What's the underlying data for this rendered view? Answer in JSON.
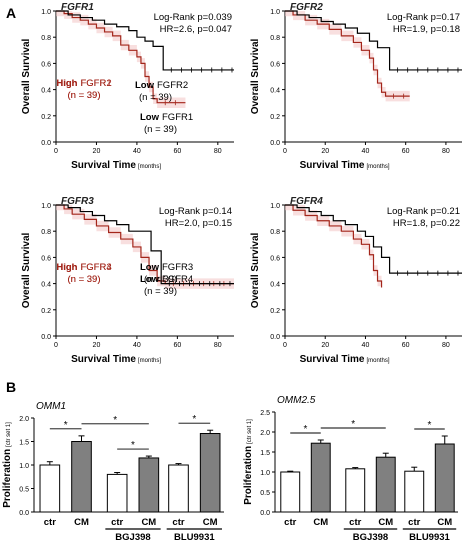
{
  "panels": {
    "a": {
      "label": "A"
    },
    "b": {
      "label": "B"
    }
  },
  "colors": {
    "high": "#a3261b",
    "low": "#000000",
    "ci": "#f2c4c4",
    "bar_ctr": "#ffffff",
    "bar_cm": "#808080"
  },
  "chart_data": [
    {
      "type": "line",
      "subtype": "kaplan-meier",
      "title": "FGFR1",
      "xlabel": "Survival Time",
      "xlabel_unit": "[months]",
      "ylabel": "Overall Survival",
      "xlim": [
        0,
        88
      ],
      "ylim": [
        0,
        1.0
      ],
      "xticks": [
        0,
        20,
        40,
        60,
        80
      ],
      "yticks": [
        "0.0",
        "0.2",
        "0.4",
        "0.6",
        "0.8",
        "1.0"
      ],
      "stats": [
        "Log-Rank p=0.039",
        "HR=2.6, p=0.047"
      ],
      "high_label": {
        "bold": "High",
        "name": "FGFR1",
        "n": "(n = 39)"
      },
      "low_label": {
        "bold": "Low",
        "name": "FGFR1",
        "n": "(n = 39)"
      },
      "series": [
        {
          "name": "High",
          "points": [
            [
              0,
              1.0
            ],
            [
              4,
              0.98
            ],
            [
              8,
              0.95
            ],
            [
              12,
              0.93
            ],
            [
              16,
              0.9
            ],
            [
              20,
              0.87
            ],
            [
              24,
              0.84
            ],
            [
              28,
              0.81
            ],
            [
              32,
              0.74
            ],
            [
              36,
              0.7
            ],
            [
              40,
              0.65
            ],
            [
              42,
              0.6
            ],
            [
              44,
              0.5
            ],
            [
              46,
              0.42
            ],
            [
              48,
              0.33
            ],
            [
              50,
              0.3
            ],
            [
              64,
              0.3
            ]
          ]
        },
        {
          "name": "Low",
          "points": [
            [
              0,
              1.0
            ],
            [
              6,
              0.97
            ],
            [
              12,
              0.95
            ],
            [
              18,
              0.93
            ],
            [
              24,
              0.9
            ],
            [
              30,
              0.88
            ],
            [
              36,
              0.85
            ],
            [
              40,
              0.8
            ],
            [
              44,
              0.77
            ],
            [
              48,
              0.73
            ],
            [
              53,
              0.55
            ],
            [
              88,
              0.55
            ]
          ]
        }
      ]
    },
    {
      "type": "line",
      "subtype": "kaplan-meier",
      "title": "FGFR2",
      "xlabel": "Survival Time",
      "xlabel_unit": "[months]",
      "ylabel": "Overall Survival",
      "xlim": [
        0,
        88
      ],
      "ylim": [
        0,
        1.0
      ],
      "xticks": [
        0,
        20,
        40,
        60,
        80
      ],
      "yticks": [
        "0.0",
        "0.2",
        "0.4",
        "0.6",
        "0.8",
        "1.0"
      ],
      "stats": [
        "Log-Rank p=0.17",
        "HR=1.9, p=0.18"
      ],
      "high_label": {
        "bold": "High",
        "name": "FGFR2",
        "n": "(n = 39)"
      },
      "low_label": {
        "bold": "Low",
        "name": "FGFR2",
        "n": "(n = 39)"
      },
      "series": [
        {
          "name": "High",
          "points": [
            [
              0,
              1.0
            ],
            [
              4,
              0.97
            ],
            [
              10,
              0.93
            ],
            [
              16,
              0.9
            ],
            [
              22,
              0.86
            ],
            [
              28,
              0.81
            ],
            [
              34,
              0.76
            ],
            [
              38,
              0.7
            ],
            [
              42,
              0.64
            ],
            [
              44,
              0.55
            ],
            [
              46,
              0.45
            ],
            [
              48,
              0.38
            ],
            [
              50,
              0.35
            ],
            [
              62,
              0.35
            ]
          ]
        },
        {
          "name": "Low",
          "points": [
            [
              0,
              1.0
            ],
            [
              6,
              0.97
            ],
            [
              12,
              0.95
            ],
            [
              18,
              0.92
            ],
            [
              24,
              0.9
            ],
            [
              30,
              0.87
            ],
            [
              36,
              0.83
            ],
            [
              42,
              0.77
            ],
            [
              46,
              0.72
            ],
            [
              52,
              0.55
            ],
            [
              88,
              0.55
            ]
          ]
        }
      ]
    },
    {
      "type": "line",
      "subtype": "kaplan-meier",
      "title": "FGFR3",
      "xlabel": "Survival Time",
      "xlabel_unit": "[months]",
      "ylabel": "Overall Survival",
      "xlim": [
        0,
        88
      ],
      "ylim": [
        0,
        1.0
      ],
      "xticks": [
        0,
        20,
        40,
        60,
        80
      ],
      "yticks": [
        "0.0",
        "0.2",
        "0.4",
        "0.6",
        "0.8",
        "1.0"
      ],
      "stats": [
        "Log-Rank p=0.14",
        "HR=2.0, p=0.15"
      ],
      "high_label": {
        "bold": "High",
        "name": "FGFR3",
        "n": "(n = 39)"
      },
      "low_label": {
        "bold": "Low",
        "name": "FGFR3",
        "n": "(n = 39)"
      },
      "series": [
        {
          "name": "High",
          "points": [
            [
              0,
              1.0
            ],
            [
              4,
              0.97
            ],
            [
              8,
              0.93
            ],
            [
              14,
              0.89
            ],
            [
              20,
              0.84
            ],
            [
              26,
              0.79
            ],
            [
              32,
              0.74
            ],
            [
              38,
              0.68
            ],
            [
              42,
              0.6
            ],
            [
              46,
              0.5
            ],
            [
              50,
              0.42
            ],
            [
              54,
              0.4
            ],
            [
              88,
              0.4
            ]
          ]
        },
        {
          "name": "Low",
          "points": [
            [
              0,
              1.0
            ],
            [
              6,
              0.98
            ],
            [
              12,
              0.95
            ],
            [
              18,
              0.92
            ],
            [
              24,
              0.88
            ],
            [
              30,
              0.85
            ],
            [
              36,
              0.8
            ],
            [
              42,
              0.8
            ],
            [
              47,
              0.65
            ],
            [
              52,
              0.4
            ],
            [
              88,
              0.4
            ]
          ]
        }
      ]
    },
    {
      "type": "line",
      "subtype": "kaplan-meier",
      "title": "FGFR4",
      "xlabel": "Survival Time",
      "xlabel_unit": "[months]",
      "ylabel": "Overall Survival",
      "xlim": [
        0,
        88
      ],
      "ylim": [
        0,
        1.0
      ],
      "xticks": [
        0,
        20,
        40,
        60,
        80
      ],
      "yticks": [
        "0.0",
        "0.2",
        "0.4",
        "0.6",
        "0.8",
        "1.0"
      ],
      "stats": [
        "Log-Rank p=0.21",
        "HR=1.8, p=0.22"
      ],
      "high_label": {
        "bold": "High",
        "name": "FGFR4",
        "n": "(n = 39)"
      },
      "low_label": {
        "bold": "Low",
        "name": "FGFR4",
        "n": "(n = 39)"
      },
      "series": [
        {
          "name": "High",
          "points": [
            [
              0,
              1.0
            ],
            [
              4,
              0.96
            ],
            [
              10,
              0.92
            ],
            [
              16,
              0.88
            ],
            [
              22,
              0.84
            ],
            [
              28,
              0.8
            ],
            [
              34,
              0.74
            ],
            [
              38,
              0.7
            ],
            [
              42,
              0.62
            ],
            [
              44,
              0.5
            ],
            [
              46,
              0.42
            ],
            [
              48,
              0.37
            ]
          ]
        },
        {
          "name": "Low",
          "points": [
            [
              0,
              1.0
            ],
            [
              6,
              0.98
            ],
            [
              12,
              0.95
            ],
            [
              18,
              0.92
            ],
            [
              24,
              0.88
            ],
            [
              30,
              0.85
            ],
            [
              36,
              0.8
            ],
            [
              40,
              0.76
            ],
            [
              44,
              0.68
            ],
            [
              48,
              0.6
            ],
            [
              52,
              0.48
            ],
            [
              88,
              0.48
            ]
          ]
        }
      ]
    },
    {
      "type": "bar",
      "title": "OMM1",
      "ylabel": "Proliferation",
      "ylabel_unit": "[ctr set 1]",
      "ylim": [
        0,
        2.0
      ],
      "yticks": [
        "0.0",
        "0.5",
        "1.0",
        "1.5",
        "2.0"
      ],
      "categories": [
        "ctr",
        "CM",
        "ctr",
        "CM",
        "ctr",
        "CM"
      ],
      "groups": [
        "",
        "BGJ398",
        "BLU9931"
      ],
      "values": [
        1.0,
        1.5,
        0.8,
        1.15,
        1.0,
        1.67
      ],
      "errors": [
        0.07,
        0.12,
        0.04,
        0.04,
        0.03,
        0.07
      ],
      "fill": [
        "ctr",
        "cm",
        "ctr",
        "cm",
        "ctr",
        "cm"
      ],
      "significance": [
        {
          "from": 0,
          "to": 1,
          "label": "*"
        },
        {
          "from": 1,
          "to": 3,
          "label": "*"
        },
        {
          "from": 2,
          "to": 3,
          "label": "*"
        },
        {
          "from": 4,
          "to": 5,
          "label": "*"
        }
      ]
    },
    {
      "type": "bar",
      "title": "OMM2.5",
      "ylabel": "Proliferation",
      "ylabel_unit": "[ctr set 1]",
      "ylim": [
        0,
        2.5
      ],
      "yticks": [
        "0.0",
        "0.5",
        "1.0",
        "1.5",
        "2.0",
        "2.5"
      ],
      "categories": [
        "ctr",
        "CM",
        "ctr",
        "CM",
        "ctr",
        "CM"
      ],
      "groups": [
        "",
        "BGJ398",
        "BLU9931"
      ],
      "values": [
        1.0,
        1.72,
        1.08,
        1.37,
        1.02,
        1.7
      ],
      "errors": [
        0.02,
        0.08,
        0.03,
        0.1,
        0.1,
        0.2
      ],
      "fill": [
        "ctr",
        "cm",
        "ctr",
        "cm",
        "ctr",
        "cm"
      ],
      "significance": [
        {
          "from": 0,
          "to": 1,
          "label": "*"
        },
        {
          "from": 1,
          "to": 3,
          "label": "*"
        },
        {
          "from": 4,
          "to": 5,
          "label": "*"
        }
      ]
    }
  ]
}
